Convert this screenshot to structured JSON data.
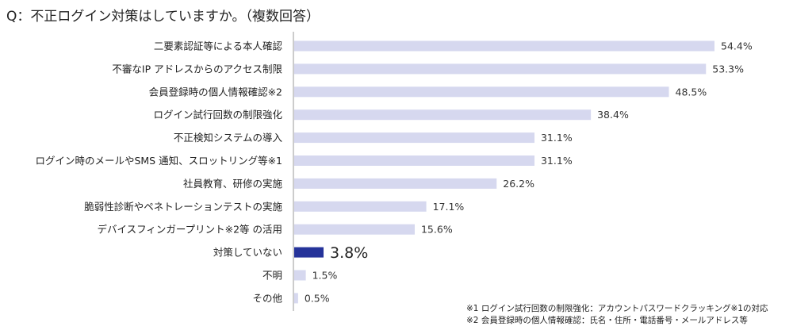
{
  "title": "Q：不正ログイン対策はしていますか。（複数回答）",
  "chart_data": {
    "type": "bar",
    "orientation": "horizontal",
    "categories": [
      "二要素認証等による本人確認",
      "不審なIP アドレスからのアクセス制限",
      "会員登録時の個人情報確認※2",
      "ログイン試行回数の制限強化",
      "不正検知システムの導入",
      "ログイン時のメールやSMS 通知、スロットリング等※1",
      "社員教育、研修の実施",
      "脆弱性診断やペネトレーションテストの実施",
      "デバイスフィンガープリント※2等 の活用",
      "対策していない",
      "不明",
      "その他"
    ],
    "values": [
      54.4,
      53.3,
      48.5,
      38.4,
      31.1,
      31.1,
      26.2,
      17.1,
      15.6,
      3.8,
      1.5,
      0.5
    ],
    "value_labels": [
      "54.4%",
      "53.3%",
      "48.5%",
      "38.4%",
      "31.1%",
      "31.1%",
      "26.2%",
      "17.1%",
      "15.6%",
      "3.8%",
      "1.5%",
      "0.5%"
    ],
    "highlight_category": "対策していない",
    "bar_color": "#d6d8ef",
    "highlight_color": "#25339a",
    "xlim": [
      0,
      60
    ],
    "grid": false
  },
  "notes": [
    "※1 ログイン試行回数の制限強化：アカウントパスワードクラッキング※1の対応",
    "※2 会員登録時の個人情報確認：氏名・住所・電話番号・メールアドレス等"
  ]
}
